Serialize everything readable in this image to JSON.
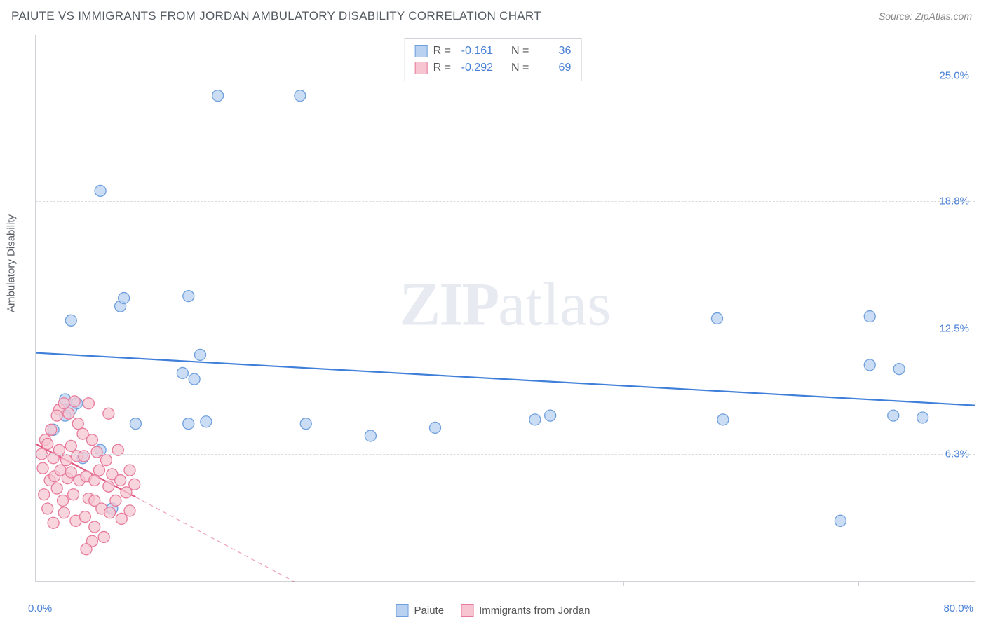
{
  "title": "PAIUTE VS IMMIGRANTS FROM JORDAN AMBULATORY DISABILITY CORRELATION CHART",
  "source": "Source: ZipAtlas.com",
  "watermark_bold": "ZIP",
  "watermark_light": "atlas",
  "chart": {
    "type": "scatter",
    "ylabel": "Ambulatory Disability",
    "xlim": [
      0,
      80
    ],
    "ylim": [
      0,
      27
    ],
    "xmin_label": "0.0%",
    "xmax_label": "80.0%",
    "yticks": [
      {
        "v": 6.3,
        "label": "6.3%"
      },
      {
        "v": 12.5,
        "label": "12.5%"
      },
      {
        "v": 18.8,
        "label": "18.8%"
      },
      {
        "v": 25.0,
        "label": "25.0%"
      }
    ],
    "xtick_positions": [
      10,
      20,
      30,
      40,
      50,
      60,
      70
    ],
    "background_color": "#ffffff",
    "grid_color": "#d8dce0",
    "series": [
      {
        "name": "Paiute",
        "marker_color_fill": "#b9d1f0",
        "marker_color_stroke": "#6fa0dd",
        "marker_radius": 8,
        "line_color": "#3f7fd9",
        "line_width": 2.2,
        "regression": {
          "x1": 0,
          "y1": 11.3,
          "x2": 80,
          "y2": 8.7,
          "solid_until_x": 80
        },
        "R": "-0.161",
        "N": "36",
        "points": [
          [
            3.0,
            12.9
          ],
          [
            7.2,
            13.6
          ],
          [
            5.5,
            19.3
          ],
          [
            3.5,
            8.8
          ],
          [
            3.0,
            8.5
          ],
          [
            2.5,
            8.2
          ],
          [
            7.5,
            14.0
          ],
          [
            13.0,
            14.1
          ],
          [
            15.5,
            24.0
          ],
          [
            22.5,
            24.0
          ],
          [
            8.5,
            7.8
          ],
          [
            13.0,
            7.8
          ],
          [
            12.5,
            10.3
          ],
          [
            13.5,
            10.0
          ],
          [
            14.0,
            11.2
          ],
          [
            23.0,
            7.8
          ],
          [
            34.0,
            7.6
          ],
          [
            4.0,
            6.1
          ],
          [
            2.5,
            9.0
          ],
          [
            1.5,
            7.5
          ],
          [
            6.5,
            3.6
          ],
          [
            5.5,
            6.5
          ],
          [
            14.5,
            7.9
          ],
          [
            28.5,
            7.2
          ],
          [
            42.5,
            8.0
          ],
          [
            43.8,
            8.2
          ],
          [
            58.0,
            13.0
          ],
          [
            58.5,
            8.0
          ],
          [
            71.0,
            10.7
          ],
          [
            73.5,
            10.5
          ],
          [
            73.0,
            8.2
          ],
          [
            75.5,
            8.1
          ],
          [
            68.5,
            3.0
          ],
          [
            71.0,
            13.1
          ]
        ]
      },
      {
        "name": "Immigrants from Jordan",
        "marker_color_fill": "#f6c5d1",
        "marker_color_stroke": "#e77a9b",
        "marker_radius": 8,
        "line_color": "#e0567f",
        "line_width": 2.2,
        "regression": {
          "x1": 0,
          "y1": 6.8,
          "x2": 22,
          "y2": 0.0,
          "solid_until_x": 8.5
        },
        "R": "-0.292",
        "N": "69",
        "points": [
          [
            0.5,
            6.3
          ],
          [
            0.8,
            7.0
          ],
          [
            0.6,
            5.6
          ],
          [
            1.0,
            6.8
          ],
          [
            1.2,
            5.0
          ],
          [
            0.7,
            4.3
          ],
          [
            1.3,
            7.5
          ],
          [
            1.5,
            6.1
          ],
          [
            1.6,
            5.2
          ],
          [
            1.8,
            4.6
          ],
          [
            2.0,
            6.5
          ],
          [
            2.1,
            5.5
          ],
          [
            2.3,
            4.0
          ],
          [
            2.4,
            3.4
          ],
          [
            2.6,
            6.0
          ],
          [
            2.7,
            5.1
          ],
          [
            1.0,
            3.6
          ],
          [
            1.5,
            2.9
          ],
          [
            3.0,
            6.7
          ],
          [
            3.0,
            5.4
          ],
          [
            3.2,
            4.3
          ],
          [
            3.4,
            3.0
          ],
          [
            3.5,
            6.2
          ],
          [
            3.7,
            5.0
          ],
          [
            3.6,
            7.8
          ],
          [
            2.0,
            8.5
          ],
          [
            2.4,
            8.8
          ],
          [
            2.8,
            8.3
          ],
          [
            3.3,
            8.9
          ],
          [
            1.8,
            8.2
          ],
          [
            4.0,
            7.3
          ],
          [
            4.1,
            6.2
          ],
          [
            4.3,
            5.2
          ],
          [
            4.5,
            4.1
          ],
          [
            4.5,
            8.8
          ],
          [
            4.2,
            3.2
          ],
          [
            4.8,
            7.0
          ],
          [
            5.0,
            5.0
          ],
          [
            5.0,
            4.0
          ],
          [
            5.2,
            6.4
          ],
          [
            5.4,
            5.5
          ],
          [
            5.6,
            3.6
          ],
          [
            5.0,
            2.7
          ],
          [
            4.8,
            2.0
          ],
          [
            4.3,
            1.6
          ],
          [
            5.8,
            2.2
          ],
          [
            6.0,
            6.0
          ],
          [
            6.2,
            4.7
          ],
          [
            6.2,
            8.3
          ],
          [
            6.3,
            3.4
          ],
          [
            6.5,
            5.3
          ],
          [
            6.8,
            4.0
          ],
          [
            7.0,
            6.5
          ],
          [
            7.2,
            5.0
          ],
          [
            7.3,
            3.1
          ],
          [
            7.7,
            4.4
          ],
          [
            8.0,
            5.5
          ],
          [
            8.0,
            3.5
          ],
          [
            8.4,
            4.8
          ]
        ]
      }
    ],
    "legend_box": {
      "R_label": "R =",
      "N_label": "N ="
    }
  }
}
